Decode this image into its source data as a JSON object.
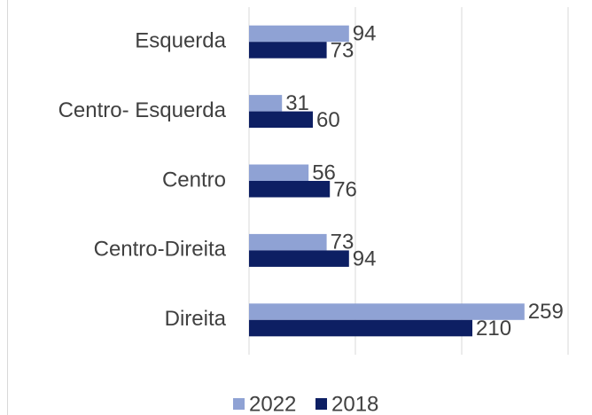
{
  "chart_data": {
    "type": "bar",
    "orientation": "horizontal",
    "categories": [
      "Esquerda",
      "Centro- Esquerda",
      "Centro",
      "Centro-Direita",
      "Direita"
    ],
    "series": [
      {
        "name": "2022",
        "color": "#8fa2d4",
        "values": [
          94,
          31,
          56,
          73,
          259
        ]
      },
      {
        "name": "2018",
        "color": "#0d1f63",
        "values": [
          73,
          60,
          76,
          94,
          210
        ]
      }
    ],
    "xlim": [
      0,
      300
    ],
    "xticks": [
      0,
      100,
      200,
      300
    ],
    "grid": true,
    "legend": "bottom"
  }
}
